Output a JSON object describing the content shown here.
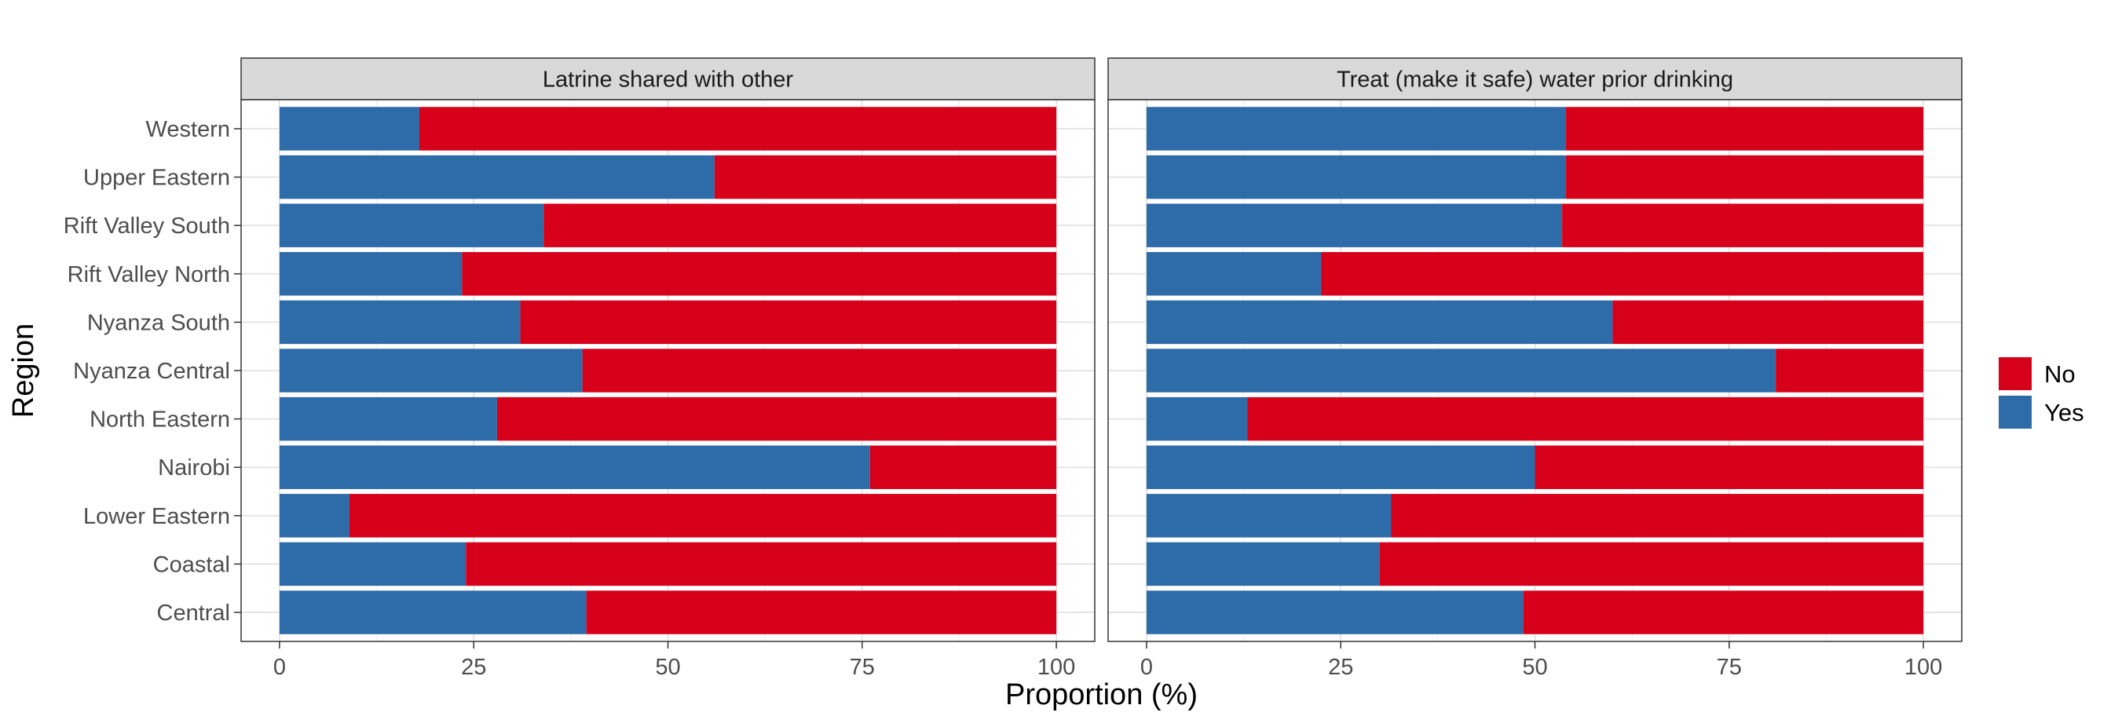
{
  "chart_data": {
    "type": "bar",
    "stacked": true,
    "orientation": "horizontal",
    "xlabel": "Proportion (%)",
    "ylabel": "Region",
    "xlim": [
      0,
      100
    ],
    "xticks": [
      "0",
      "25",
      "50",
      "75",
      "100"
    ],
    "grid": true,
    "legend_position": "right",
    "categories": [
      "Central",
      "Coastal",
      "Lower Eastern",
      "Nairobi",
      "North Eastern",
      "Nyanza Central",
      "Nyanza South",
      "Rift Valley North",
      "Rift Valley South",
      "Upper Eastern",
      "Western"
    ],
    "colors": {
      "No": "#d7001a",
      "Yes": "#2e6ba9"
    },
    "legend": [
      "No",
      "Yes"
    ],
    "panels": [
      {
        "title": "Latrine shared with other",
        "series": [
          {
            "name": "Yes",
            "values": [
              39.5,
              24,
              9,
              76,
              28,
              39,
              31,
              23.5,
              34,
              56,
              18
            ]
          },
          {
            "name": "No",
            "values": [
              60.5,
              76,
              91,
              24,
              72,
              61,
              69,
              76.5,
              66,
              44,
              82
            ]
          }
        ]
      },
      {
        "title": "Treat (make it safe) water prior drinking",
        "series": [
          {
            "name": "Yes",
            "values": [
              48.5,
              30,
              31.5,
              50,
              13,
              81,
              60,
              22.5,
              53.5,
              54,
              54
            ]
          },
          {
            "name": "No",
            "values": [
              51.5,
              70,
              68.5,
              50,
              87,
              19,
              40,
              77.5,
              46.5,
              46,
              46
            ]
          }
        ]
      }
    ]
  }
}
